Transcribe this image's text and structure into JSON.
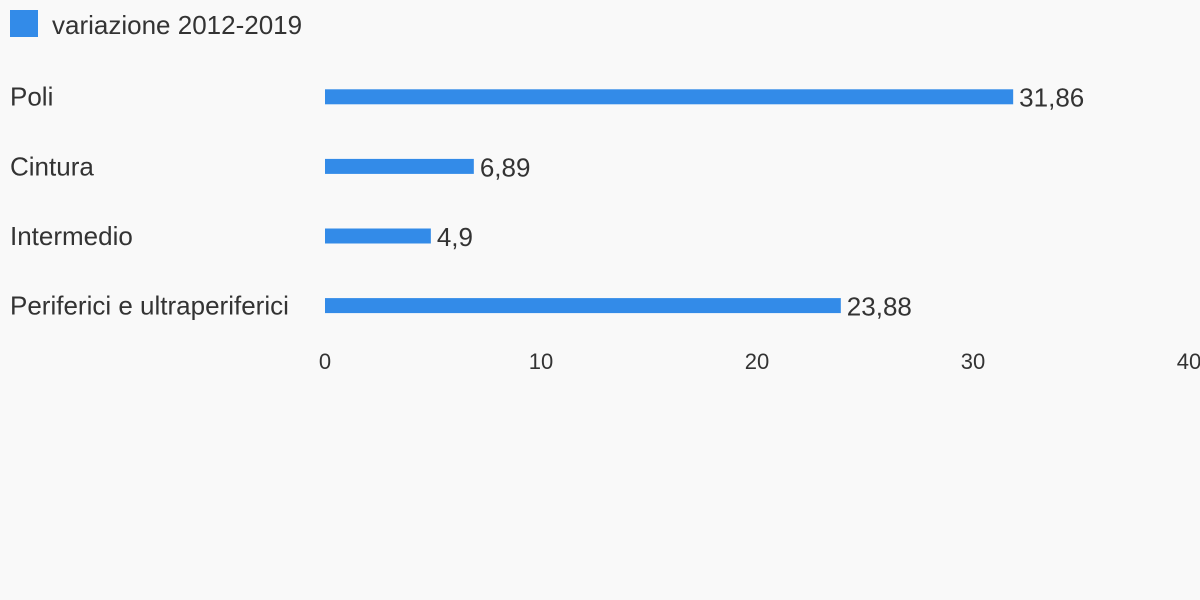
{
  "chart_data": {
    "type": "hbar",
    "categories": [
      "Poli",
      "Cintura",
      "Intermedio",
      "Periferici e ultraperiferici"
    ],
    "series": [
      {
        "name": "variazione 2012-2019",
        "color": "#338be8",
        "values": [
          31.86,
          6.89,
          4.9,
          23.88
        ],
        "value_labels": [
          "31,86",
          "6,89",
          "4,9",
          "23,88"
        ]
      }
    ],
    "xlim": [
      0,
      40
    ],
    "xticks": [
      0,
      10,
      20,
      30,
      40
    ],
    "grid": false,
    "legend": "top-left"
  }
}
